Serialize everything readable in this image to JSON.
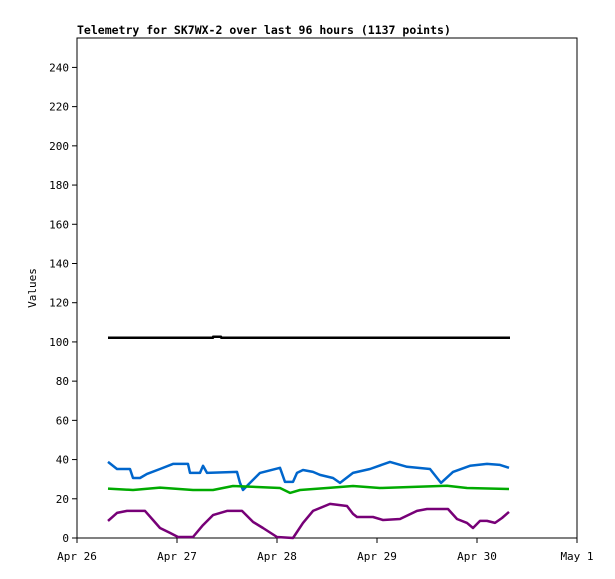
{
  "chart_data": {
    "type": "line",
    "title": "Telemetry for SK7WX-2 over last 96 hours (1137 points)",
    "xlabel": "",
    "ylabel": "Values",
    "xlim": [
      "Apr 26 00:00",
      "May 1 00:00"
    ],
    "ylim": [
      0,
      255
    ],
    "x_ticks": [
      {
        "at": "Apr 26 00:00",
        "label": "Apr 26"
      },
      {
        "at": "Apr 27 00:00",
        "label": "Apr 27"
      },
      {
        "at": "Apr 28 00:00",
        "label": "Apr 28"
      },
      {
        "at": "Apr 29 00:00",
        "label": "Apr 29"
      },
      {
        "at": "Apr 30 00:00",
        "label": "Apr 30"
      },
      {
        "at": "May 1 00:00",
        "label": "May 1"
      }
    ],
    "y_ticks": [
      0,
      20,
      40,
      60,
      80,
      100,
      120,
      140,
      160,
      180,
      200,
      220,
      240
    ],
    "grid": false,
    "legend": "none",
    "series": [
      {
        "color": "#000000",
        "points": [
          [
            "Apr 26 07:26",
            102.1
          ],
          [
            "Apr 27 08:38",
            102.1
          ],
          [
            "Apr 27 08:40",
            102.6
          ],
          [
            "Apr 27 10:34",
            102.6
          ],
          [
            "Apr 27 10:36",
            102.1
          ],
          [
            "Apr 30 07:55",
            102.1
          ]
        ]
      },
      {
        "color": "#0066cc",
        "points": [
          [
            "Apr 26 07:26",
            38.8
          ],
          [
            "Apr 26 09:36",
            35.2
          ],
          [
            "Apr 26 12:43",
            35.2
          ],
          [
            "Apr 26 13:26",
            30.6
          ],
          [
            "Apr 26 15:07",
            30.6
          ],
          [
            "Apr 26 16:48",
            32.7
          ],
          [
            "Apr 26 19:55",
            35.2
          ],
          [
            "Apr 26 23:02",
            37.8
          ],
          [
            "Apr 27 02:38",
            37.8
          ],
          [
            "Apr 27 03:07",
            33.2
          ],
          [
            "Apr 27 05:31",
            33.2
          ],
          [
            "Apr 27 06:14",
            36.8
          ],
          [
            "Apr 27 07:12",
            33.2
          ],
          [
            "Apr 27 14:24",
            33.7
          ],
          [
            "Apr 27 15:07",
            28.1
          ],
          [
            "Apr 27 15:50",
            24.5
          ],
          [
            "Apr 27 17:31",
            28.1
          ],
          [
            "Apr 27 19:55",
            33.2
          ],
          [
            "Apr 28 00:43",
            35.8
          ],
          [
            "Apr 28 01:55",
            28.6
          ],
          [
            "Apr 28 03:50",
            28.6
          ],
          [
            "Apr 28 04:48",
            33.2
          ],
          [
            "Apr 28 06:14",
            34.7
          ],
          [
            "Apr 28 08:38",
            33.7
          ],
          [
            "Apr 28 10:19",
            32.2
          ],
          [
            "Apr 28 13:26",
            30.6
          ],
          [
            "Apr 28 15:07",
            28.1
          ],
          [
            "Apr 28 18:14",
            33.2
          ],
          [
            "Apr 28 22:19",
            35.2
          ],
          [
            "Apr 29 03:07",
            38.8
          ],
          [
            "Apr 29 07:12",
            36.3
          ],
          [
            "Apr 29 12:43",
            35.2
          ],
          [
            "Apr 29 15:22",
            28.1
          ],
          [
            "Apr 29 18:14",
            33.7
          ],
          [
            "Apr 29 22:19",
            36.8
          ],
          [
            "Apr 30 02:24",
            37.8
          ],
          [
            "Apr 30 05:31",
            37.3
          ],
          [
            "Apr 30 07:41",
            35.8
          ]
        ]
      },
      {
        "color": "#00aa00",
        "points": [
          [
            "Apr 26 07:26",
            25.2
          ],
          [
            "Apr 26 13:26",
            24.5
          ],
          [
            "Apr 26 19:55",
            25.7
          ],
          [
            "Apr 27 03:50",
            24.5
          ],
          [
            "Apr 27 08:38",
            24.5
          ],
          [
            "Apr 27 13:26",
            26.5
          ],
          [
            "Apr 28 00:43",
            25.5
          ],
          [
            "Apr 28 03:07",
            23.0
          ],
          [
            "Apr 28 05:31",
            24.5
          ],
          [
            "Apr 28 12:00",
            25.5
          ],
          [
            "Apr 28 18:14",
            26.5
          ],
          [
            "Apr 29 00:43",
            25.5
          ],
          [
            "Apr 29 16:48",
            26.6
          ],
          [
            "Apr 29 21:36",
            25.5
          ],
          [
            "Apr 30 07:41",
            25.0
          ]
        ]
      },
      {
        "color": "#770077",
        "points": [
          [
            "Apr 26 07:26",
            8.7
          ],
          [
            "Apr 26 09:36",
            12.8
          ],
          [
            "Apr 26 12:00",
            13.8
          ],
          [
            "Apr 26 16:19",
            13.8
          ],
          [
            "Apr 26 18:14",
            9.2
          ],
          [
            "Apr 26 19:55",
            5.1
          ],
          [
            "Apr 26 22:19",
            2.6
          ],
          [
            "Apr 27 00:14",
            0.5
          ],
          [
            "Apr 27 03:50",
            0.5
          ],
          [
            "Apr 27 06:14",
            6.6
          ],
          [
            "Apr 27 08:38",
            11.7
          ],
          [
            "Apr 27 12:00",
            13.8
          ],
          [
            "Apr 27 15:36",
            13.8
          ],
          [
            "Apr 27 18:14",
            8.2
          ],
          [
            "Apr 27 20:38",
            5.1
          ],
          [
            "Apr 28 00:00",
            0.5
          ],
          [
            "Apr 28 03:50",
            0
          ],
          [
            "Apr 28 06:14",
            7.7
          ],
          [
            "Apr 28 08:38",
            13.8
          ],
          [
            "Apr 28 12:43",
            17.4
          ],
          [
            "Apr 28 16:48",
            16.3
          ],
          [
            "Apr 28 18:14",
            12.3
          ],
          [
            "Apr 28 19:12",
            10.7
          ],
          [
            "Apr 28 23:02",
            10.7
          ],
          [
            "Apr 29 01:26",
            9.2
          ],
          [
            "Apr 29 05:31",
            9.7
          ],
          [
            "Apr 29 09:36",
            13.8
          ],
          [
            "Apr 29 12:00",
            14.8
          ],
          [
            "Apr 29 17:02",
            14.8
          ],
          [
            "Apr 29 19:12",
            9.7
          ],
          [
            "Apr 29 21:36",
            7.7
          ],
          [
            "Apr 29 23:02",
            5.1
          ],
          [
            "Apr 30 00:43",
            8.7
          ],
          [
            "Apr 30 02:24",
            8.7
          ],
          [
            "Apr 30 04:19",
            7.7
          ],
          [
            "Apr 30 06:00",
            10.2
          ],
          [
            "Apr 30 07:41",
            13.3
          ]
        ]
      }
    ]
  }
}
